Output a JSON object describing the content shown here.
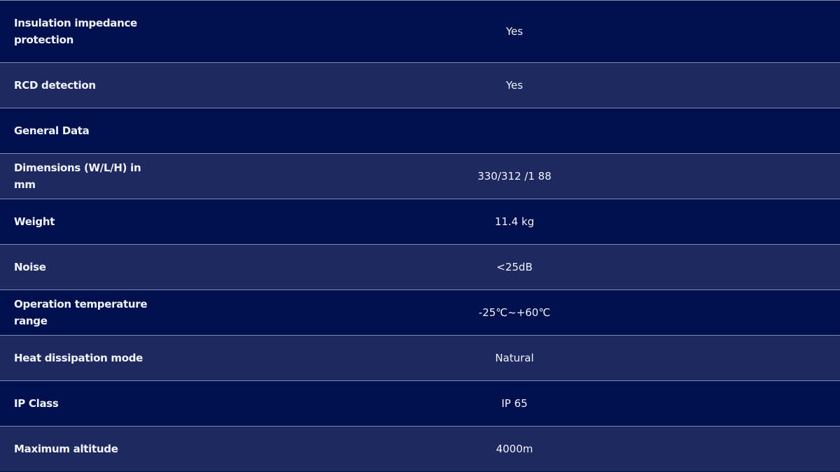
{
  "specs": {
    "rows": [
      {
        "label": "Insulation impedance protection",
        "value": "Yes"
      },
      {
        "label": "RCD detection",
        "value": "Yes"
      },
      {
        "label": "General Data",
        "value": ""
      },
      {
        "label": "Dimensions (W/L/H) in mm",
        "value": "330/312 /1 88"
      },
      {
        "label": "Weight",
        "value": "11.4 kg"
      },
      {
        "label": "Noise",
        "value": "<25dB"
      },
      {
        "label": "Operation temperature range",
        "value": "-25℃~+60℃"
      },
      {
        "label": "Heat dissipation mode",
        "value": "Natural"
      },
      {
        "label": "IP Class",
        "value": "IP 65"
      },
      {
        "label": "Maximum altitude",
        "value": "4000m"
      }
    ]
  },
  "colors": {
    "row_dark": "#000f4d",
    "row_light": "#1e2960",
    "border": "#7f89b8",
    "text": "#f2f4fb"
  }
}
